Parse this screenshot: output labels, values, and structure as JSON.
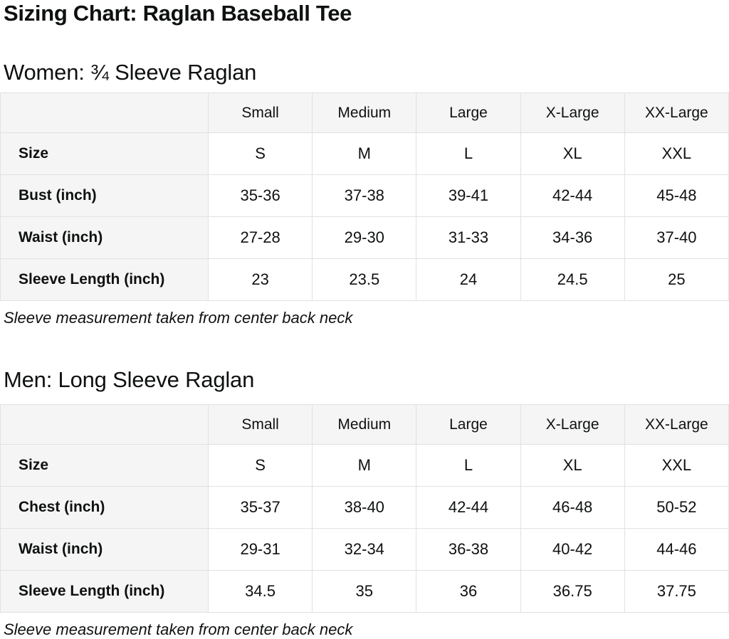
{
  "page": {
    "title": "Sizing Chart: Raglan Baseball Tee"
  },
  "colors": {
    "text": "#0f1111",
    "table_border": "#e1e1e1",
    "header_cell_bg": "#f5f5f5",
    "data_cell_bg": "#ffffff",
    "page_bg": "#ffffff"
  },
  "sections": [
    {
      "id": "women",
      "heading": "Women: ¾ Sleeve Raglan",
      "note": "Sleeve measurement taken from center back neck",
      "table": {
        "column_headers": [
          "",
          "Small",
          "Medium",
          "Large",
          "X-Large",
          "XX-Large"
        ],
        "rows": [
          {
            "label": "Size",
            "values": [
              "S",
              "M",
              "L",
              "XL",
              "XXL"
            ]
          },
          {
            "label": "Bust (inch)",
            "values": [
              "35-36",
              "37-38",
              "39-41",
              "42-44",
              "45-48"
            ]
          },
          {
            "label": "Waist (inch)",
            "values": [
              "27-28",
              "29-30",
              "31-33",
              "34-36",
              "37-40"
            ]
          },
          {
            "label": "Sleeve Length (inch)",
            "values": [
              "23",
              "23.5",
              "24",
              "24.5",
              "25"
            ]
          }
        ]
      }
    },
    {
      "id": "men",
      "heading": "Men: Long Sleeve Raglan",
      "note": "Sleeve measurement taken from center back neck",
      "table": {
        "column_headers": [
          "",
          "Small",
          "Medium",
          "Large",
          "X-Large",
          "XX-Large"
        ],
        "rows": [
          {
            "label": "Size",
            "values": [
              "S",
              "M",
              "L",
              "XL",
              "XXL"
            ]
          },
          {
            "label": "Chest (inch)",
            "values": [
              "35-37",
              "38-40",
              "42-44",
              "46-48",
              "50-52"
            ]
          },
          {
            "label": "Waist (inch)",
            "values": [
              "29-31",
              "32-34",
              "36-38",
              "40-42",
              "44-46"
            ]
          },
          {
            "label": "Sleeve Length (inch)",
            "values": [
              "34.5",
              "35",
              "36",
              "36.75",
              "37.75"
            ]
          }
        ]
      }
    }
  ]
}
